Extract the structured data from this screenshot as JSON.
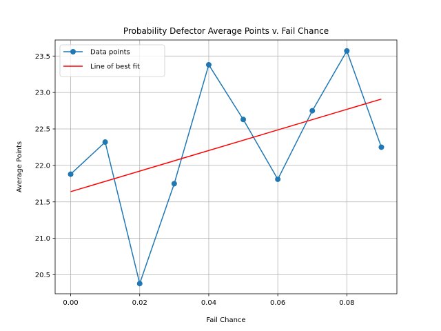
{
  "chart_data": {
    "type": "line",
    "title": "Probability Defector Average Points v. Fail Chance",
    "xlabel": "Fail Chance",
    "ylabel": "Average Points",
    "xlim": [
      -0.0045,
      0.0945
    ],
    "ylim": [
      20.24,
      23.72
    ],
    "xticks": [
      0.0,
      0.02,
      0.04,
      0.06,
      0.08
    ],
    "xtick_labels": [
      "0.00",
      "0.02",
      "0.04",
      "0.06",
      "0.08"
    ],
    "yticks": [
      20.5,
      21.0,
      21.5,
      22.0,
      22.5,
      23.0,
      23.5
    ],
    "ytick_labels": [
      "20.5",
      "21.0",
      "21.5",
      "22.0",
      "22.5",
      "23.0",
      "23.5"
    ],
    "grid": true,
    "legend_position": "upper-left",
    "series": [
      {
        "name": "Data points",
        "color": "#1f77b4",
        "marker": "circle",
        "x": [
          0.0,
          0.01,
          0.02,
          0.03,
          0.04,
          0.05,
          0.06,
          0.07,
          0.08,
          0.09
        ],
        "y": [
          21.88,
          22.32,
          20.38,
          21.75,
          23.38,
          22.63,
          21.81,
          22.75,
          23.57,
          22.25
        ]
      },
      {
        "name": "Line of best fit",
        "color": "#ff0000",
        "marker": "none",
        "x": [
          0.0,
          0.09
        ],
        "y": [
          21.64,
          22.91
        ]
      }
    ]
  }
}
